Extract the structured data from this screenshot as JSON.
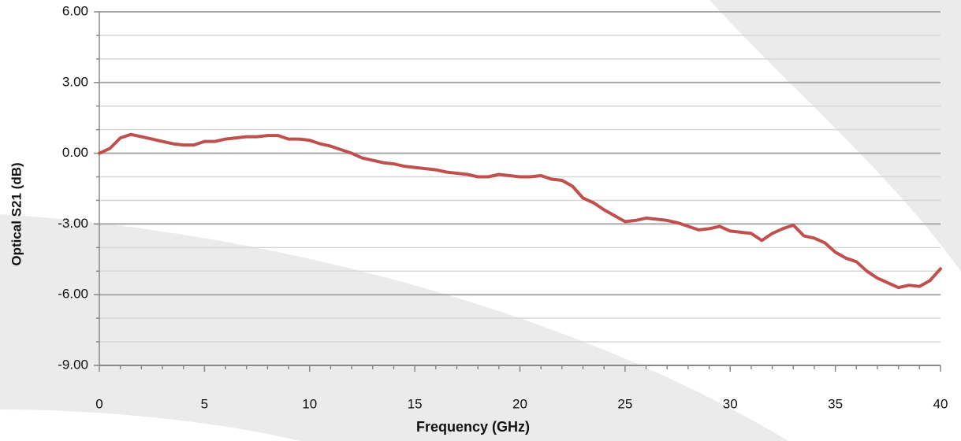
{
  "chart_data": {
    "type": "line",
    "xlabel": "Frequency  (GHz)",
    "ylabel": "Optical S21 (dB)",
    "color": "#c0504d",
    "grid": true,
    "xlim": [
      0,
      40
    ],
    "xticks": [
      0,
      5,
      10,
      15,
      20,
      25,
      30,
      35,
      40
    ],
    "minor_xticks": [
      1,
      2,
      3,
      4,
      6,
      7,
      8,
      9,
      11,
      12,
      13,
      14,
      16,
      17,
      18,
      19,
      21,
      22,
      23,
      24,
      26,
      27,
      28,
      29,
      31,
      32,
      33,
      34,
      36,
      37,
      38,
      39
    ],
    "ylim": [
      -9,
      6
    ],
    "yticks": [
      {
        "value": -9,
        "label": "-9.00"
      },
      {
        "value": -6,
        "label": "-6.00"
      },
      {
        "value": -3,
        "label": "-3.00"
      },
      {
        "value": 0,
        "label": "0.00"
      },
      {
        "value": 3,
        "label": "3.00"
      },
      {
        "value": 6,
        "label": "6.00"
      }
    ],
    "minor_yticks": [
      -8,
      -7,
      -5,
      -4,
      -2,
      -1,
      1,
      2,
      4,
      5
    ],
    "x": [
      0,
      0.5,
      1,
      1.5,
      2,
      2.5,
      3,
      3.5,
      4,
      4.5,
      5,
      5.5,
      6,
      6.5,
      7,
      7.5,
      8,
      8.5,
      9,
      9.5,
      10,
      10.5,
      11,
      11.5,
      12,
      12.5,
      13,
      13.5,
      14,
      14.5,
      15,
      15.5,
      16,
      16.5,
      17,
      17.5,
      18,
      18.5,
      19,
      19.5,
      20,
      20.5,
      21,
      21.5,
      22,
      22.5,
      23,
      23.5,
      24,
      24.5,
      25,
      25.5,
      26,
      26.5,
      27,
      27.5,
      28,
      28.5,
      29,
      29.5,
      30,
      30.5,
      31,
      31.5,
      32,
      32.5,
      33,
      33.5,
      34,
      34.5,
      35,
      35.5,
      36,
      36.5,
      37,
      37.5,
      38,
      38.5,
      39,
      39.5,
      40
    ],
    "values": [
      0.0,
      0.2,
      0.65,
      0.8,
      0.7,
      0.6,
      0.5,
      0.4,
      0.35,
      0.35,
      0.5,
      0.5,
      0.6,
      0.65,
      0.7,
      0.7,
      0.75,
      0.75,
      0.6,
      0.6,
      0.55,
      0.4,
      0.3,
      0.15,
      0.0,
      -0.2,
      -0.3,
      -0.4,
      -0.45,
      -0.55,
      -0.6,
      -0.65,
      -0.7,
      -0.8,
      -0.85,
      -0.9,
      -1.0,
      -1.0,
      -0.9,
      -0.95,
      -1.0,
      -1.0,
      -0.95,
      -1.1,
      -1.15,
      -1.4,
      -1.9,
      -2.1,
      -2.4,
      -2.65,
      -2.9,
      -2.85,
      -2.75,
      -2.8,
      -2.85,
      -2.95,
      -3.1,
      -3.25,
      -3.2,
      -3.1,
      -3.3,
      -3.35,
      -3.4,
      -3.7,
      -3.4,
      -3.2,
      -3.05,
      -3.5,
      -3.6,
      -3.8,
      -4.2,
      -4.45,
      -4.6,
      -5.0,
      -5.3,
      -5.5,
      -5.7,
      -5.6,
      -5.65,
      -5.4,
      -4.9
    ]
  }
}
